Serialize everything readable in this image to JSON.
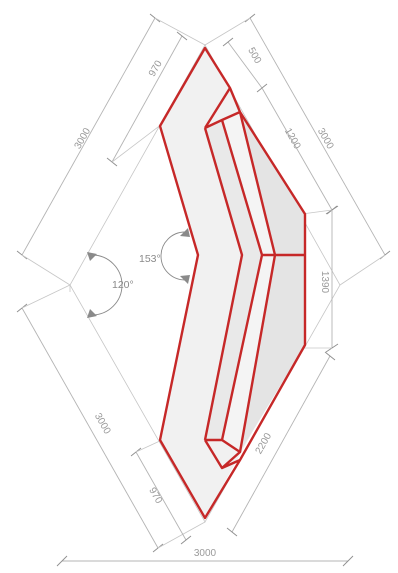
{
  "dimensions": {
    "upper_left_outer": "3000",
    "upper_left_inner": "970",
    "upper_right_short": "500",
    "upper_right_mid": "1200",
    "upper_right_outer": "3000",
    "right_vertical": "1390",
    "lower_right": "2200",
    "lower_left_outer": "3000",
    "lower_left_inner": "970",
    "bottom": "3000"
  },
  "angles": {
    "outer": "120°",
    "inner": "153°"
  },
  "colors": {
    "outline": "#c62828",
    "dimension": "#b4b4b4",
    "text": "#9a9a9a"
  }
}
